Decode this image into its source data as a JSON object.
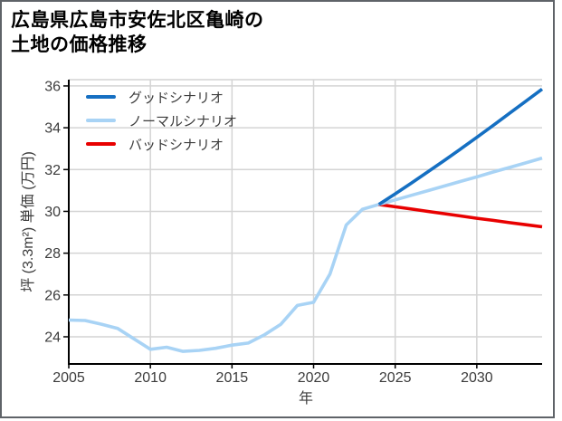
{
  "title": {
    "line1": "広島県広島市安佐北区亀崎の",
    "line2": "土地の価格推移"
  },
  "colors": {
    "grid": "#d4d4d4",
    "spine": "#000000",
    "tick_text": "#3c3c3c",
    "frame": "#5f6368",
    "good": "#156fc2",
    "normal": "#a8d3f5",
    "bad": "#e80000"
  },
  "chart_data": {
    "type": "line",
    "title": "広島県広島市安佐北区亀崎の 土地の価格推移",
    "xlabel": "年",
    "ylabel": "坪 (3.3m²) 単価 (万円)",
    "xlim": [
      2005,
      2034
    ],
    "ylim": [
      22.7,
      36.3
    ],
    "x_ticks": [
      2005,
      2010,
      2015,
      2020,
      2025,
      2030
    ],
    "y_ticks": [
      24,
      26,
      28,
      30,
      32,
      34,
      36
    ],
    "grid": true,
    "legend_position": "upper-left",
    "series": [
      {
        "id": "good",
        "name": "グッドシナリオ",
        "legend": true,
        "color": "#156fc2",
        "x": [
          2024,
          2025,
          2026,
          2027,
          2028,
          2029,
          2030,
          2031,
          2032,
          2033,
          2034
        ],
        "values": [
          30.33,
          30.84,
          31.36,
          31.89,
          32.43,
          32.98,
          33.54,
          34.11,
          34.69,
          35.27,
          35.85
        ]
      },
      {
        "id": "normal",
        "name": "ノーマルシナリオ",
        "legend": true,
        "color": "#a8d3f5",
        "x": [
          2024,
          2025,
          2026,
          2027,
          2028,
          2029,
          2030,
          2031,
          2032,
          2033,
          2034
        ],
        "values": [
          30.33,
          30.55,
          30.77,
          30.99,
          31.21,
          31.43,
          31.65,
          31.88,
          32.1,
          32.32,
          32.55
        ]
      },
      {
        "id": "bad",
        "name": "バッドシナリオ",
        "legend": true,
        "color": "#e80000",
        "x": [
          2024,
          2025,
          2026,
          2027,
          2028,
          2029,
          2030,
          2031,
          2032,
          2033,
          2034
        ],
        "values": [
          30.33,
          30.22,
          30.11,
          30.0,
          29.89,
          29.78,
          29.67,
          29.57,
          29.46,
          29.36,
          29.26
        ]
      },
      {
        "id": "historical",
        "name": "",
        "legend": false,
        "color": "#a8d3f5",
        "x": [
          2005,
          2006,
          2007,
          2008,
          2009,
          2010,
          2011,
          2012,
          2013,
          2014,
          2015,
          2016,
          2017,
          2018,
          2019,
          2020,
          2021,
          2022,
          2023,
          2024
        ],
        "values": [
          24.8,
          24.78,
          24.6,
          24.4,
          23.9,
          23.4,
          23.5,
          23.3,
          23.35,
          23.45,
          23.6,
          23.7,
          24.1,
          24.6,
          25.5,
          25.65,
          27.0,
          29.35,
          30.1,
          30.33
        ]
      }
    ]
  }
}
